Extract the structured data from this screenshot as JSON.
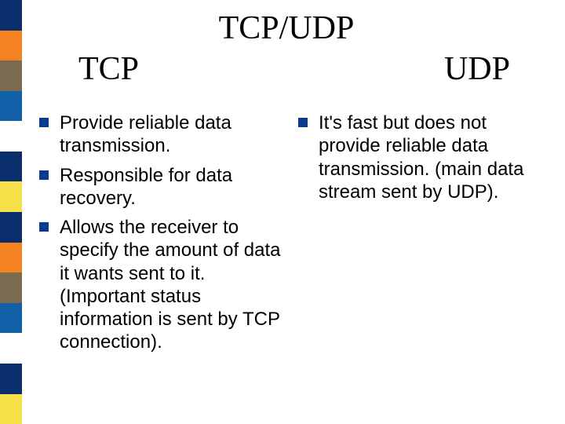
{
  "stripes": {
    "colors": [
      "#0a2d6b",
      "#f58220",
      "#7a6a4f",
      "#1260a8",
      "#ffffff",
      "#0a2d6b",
      "#f5e04a",
      "#0a2d6b",
      "#f58220",
      "#7a6a4f",
      "#1260a8",
      "#ffffff",
      "#0a2d6b",
      "#f5e04a"
    ]
  },
  "title": "TCP/UDP",
  "left": {
    "heading": "TCP",
    "bullets": [
      "Provide reliable data transmission.",
      "Responsible for data recovery.",
      "Allows the receiver to specify the amount of data it wants sent to it. (Important status information is sent by TCP connection)."
    ]
  },
  "right": {
    "heading": "UDP",
    "bullets": [
      "It's fast but does not provide reliable data transmission. (main data stream sent by UDP)."
    ]
  },
  "bullet_color": "#0a3d8f",
  "text_color": "#000000",
  "title_fontsize": 42,
  "body_fontsize": 24
}
